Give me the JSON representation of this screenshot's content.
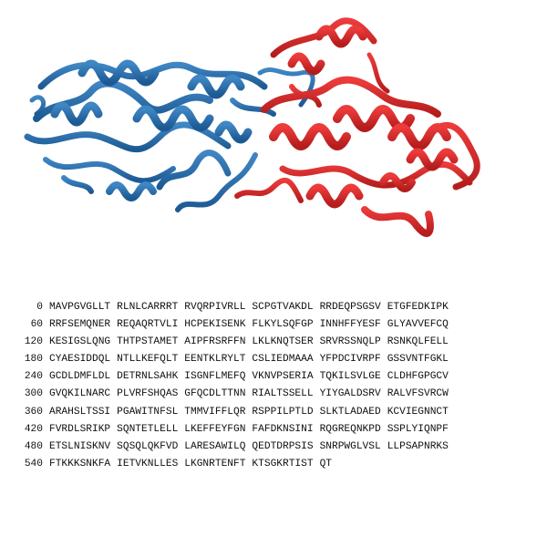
{
  "structure": {
    "domain_a_color": "#2f6fa8",
    "domain_b_color": "#d62c2c"
  },
  "sequence": {
    "rows": [
      {
        "start": "0",
        "blocks": [
          "MAVPGVGLLT",
          "RLNLCARRRT",
          "RVQRPIVRLL",
          "SCPGTVAKDL",
          "RRDEQPSGSV",
          "ETGFEDKIPK"
        ]
      },
      {
        "start": "60",
        "blocks": [
          "RRFSEMQNER",
          "REQAQRTVLI",
          "HCPEKISENK",
          "FLKYLSQFGP",
          "INNHFFYESF",
          "GLYAVVEFCQ"
        ]
      },
      {
        "start": "120",
        "blocks": [
          "KESIGSLQNG",
          "THTPSTAMET",
          "AIPFRSRFFN",
          "LKLKNQTSER",
          "SRVRSSNQLP",
          "RSNKQLFELL"
        ]
      },
      {
        "start": "180",
        "blocks": [
          "CYAESIDDQL",
          "NTLLKEFQLT",
          "EENTKLRYLT",
          "CSLIEDMAAA",
          "YFPDCIVRPF",
          "GSSVNTFGKL"
        ]
      },
      {
        "start": "240",
        "blocks": [
          "GCDLDMFLDL",
          "DETRNLSAHK",
          "ISGNFLMEFQ",
          "VKNVPSERIA",
          "TQKILSVLGE",
          "CLDHFGPGCV"
        ]
      },
      {
        "start": "300",
        "blocks": [
          "GVQKILNARC",
          "PLVRFSHQAS",
          "GFQCDLTTNN",
          "RIALTSSELL",
          "YIYGALDSRV",
          "RALVFSVRCW"
        ]
      },
      {
        "start": "360",
        "blocks": [
          "ARAHSLTSSI",
          "PGAWITNFSL",
          "TMMVIFFLQR",
          "RSPPILPTLD",
          "SLKTLADAED",
          "KCVIEGNNCT"
        ]
      },
      {
        "start": "420",
        "blocks": [
          "FVRDLSRIKP",
          "SQNTETLELL",
          "LKEFFEYFGN",
          "FAFDKNSINI",
          "RQGREQNKPD",
          "SSPLYIQNPF"
        ]
      },
      {
        "start": "480",
        "blocks": [
          "ETSLNISKNV",
          "SQSQLQKFVD",
          "LARESAWILQ",
          "QEDTDRPSIS",
          "SNRPWGLVSL",
          "LLPSAPNRKS"
        ]
      },
      {
        "start": "540",
        "blocks": [
          "FTKKKSNKFA",
          "IETVKNLLES",
          "LKGNRTENFT",
          "KTSGKRTIST",
          "QT"
        ]
      }
    ]
  }
}
